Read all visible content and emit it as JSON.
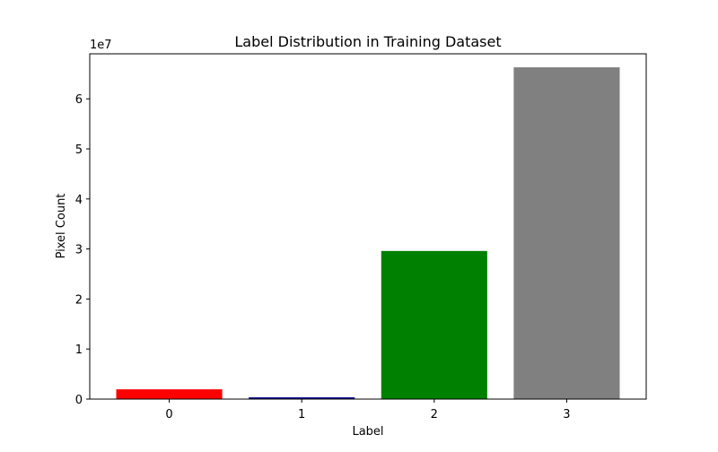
{
  "chart_data": {
    "type": "bar",
    "title": "Label Distribution in Training Dataset",
    "xlabel": "Label",
    "ylabel": "Pixel Count",
    "y_offset_label": "1e7",
    "categories": [
      "0",
      "1",
      "2",
      "3"
    ],
    "values": [
      1950000,
      350000,
      29600000,
      66300000
    ],
    "colors": [
      "#ff0000",
      "#00008b",
      "#008000",
      "#808080"
    ],
    "ylim": [
      0,
      69000000
    ],
    "y_ticks": [
      0,
      10000000,
      20000000,
      30000000,
      40000000,
      50000000,
      60000000
    ],
    "y_tick_labels": [
      "0",
      "1",
      "2",
      "3",
      "4",
      "5",
      "6"
    ],
    "grid": false,
    "legend": "none"
  }
}
